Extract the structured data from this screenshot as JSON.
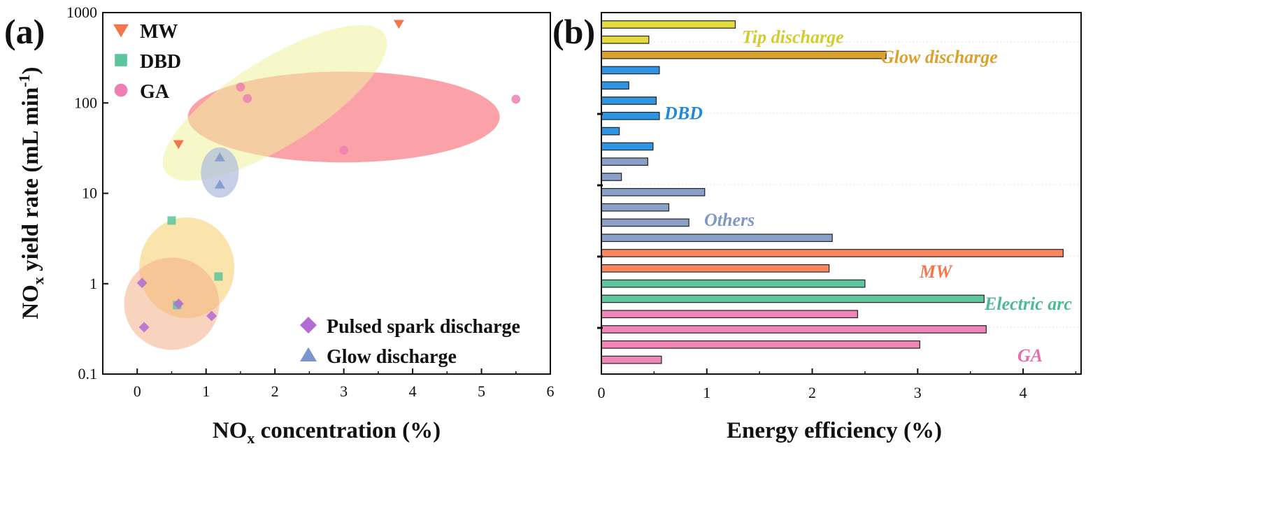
{
  "figure": {
    "panel_a_label": "(a)",
    "panel_b_label": "(b)"
  },
  "chart_data": [
    {
      "type": "scatter",
      "panel": "(a)",
      "title": "",
      "xlabel_main": "NO",
      "xlabel_sub": "x",
      "xlabel_rest": " concentration (%)",
      "ylabel_main": "NO",
      "ylabel_sub": "x",
      "ylabel_mid": " yield rate (mL min",
      "ylabel_sup": "-1",
      "ylabel_end": ")",
      "xlim": [
        -0.5,
        6
      ],
      "ylim": [
        0.1,
        1000
      ],
      "yscale": "log",
      "x_ticks": [
        0,
        1,
        2,
        3,
        4,
        5,
        6
      ],
      "x_tick_labels": [
        "0",
        "1",
        "2",
        "3",
        "4",
        "5",
        "6"
      ],
      "y_ticks": [
        0.1,
        1,
        10,
        100,
        1000
      ],
      "y_tick_labels": [
        "0.1",
        "1",
        "10",
        "100",
        "1000"
      ],
      "series": [
        {
          "name": "MW",
          "marker": "triangle-down",
          "color": "#F4764D",
          "points": [
            [
              0.6,
              35
            ],
            [
              3.8,
              750
            ]
          ]
        },
        {
          "name": "DBD",
          "marker": "square",
          "color": "#5CC59E",
          "points": [
            [
              0.5,
              5
            ],
            [
              1.18,
              1.2
            ],
            [
              0.58,
              0.58
            ]
          ]
        },
        {
          "name": "GA",
          "marker": "circle",
          "color": "#EE7FB3",
          "points": [
            [
              1.5,
              150
            ],
            [
              1.6,
              112
            ],
            [
              3.0,
              30
            ],
            [
              5.5,
              110
            ]
          ]
        },
        {
          "name": "Pulsed spark discharge",
          "marker": "diamond",
          "color": "#B36CD6",
          "points": [
            [
              0.07,
              1.02
            ],
            [
              0.1,
              0.33
            ],
            [
              0.6,
              0.6
            ],
            [
              1.08,
              0.44
            ]
          ]
        },
        {
          "name": "Glow discharge",
          "marker": "triangle-up",
          "color": "#7C95CC",
          "points": [
            [
              1.2,
              25
            ],
            [
              1.2,
              12.5
            ]
          ]
        }
      ],
      "legend_top": [
        "MW",
        "DBD",
        "GA"
      ],
      "legend_bottom": [
        "Pulsed spark discharge",
        "Glow discharge"
      ],
      "regions": [
        {
          "name": "MW region",
          "color": "#F6555F",
          "opacity": 0.55
        },
        {
          "name": "GA region",
          "color": "#EEF39F",
          "opacity": 0.55
        },
        {
          "name": "Glow region",
          "color": "#AEBBDA",
          "opacity": 0.7
        },
        {
          "name": "DBD region",
          "color": "#F7C75A",
          "opacity": 0.5
        },
        {
          "name": "Pulsed region",
          "color": "#F3AF86",
          "opacity": 0.55
        }
      ]
    },
    {
      "type": "bar",
      "orientation": "horizontal",
      "panel": "(b)",
      "xlabel": "Energy efficiency (%)",
      "ylabel": "",
      "xlim": [
        0,
        4.55
      ],
      "x_ticks": [
        0,
        1,
        2,
        3,
        4
      ],
      "x_tick_labels": [
        "0",
        "1",
        "2",
        "3",
        "4"
      ],
      "groups": [
        {
          "name": "Tip discharge",
          "color": "#E3DB3C",
          "label_color": "#D4CC2C",
          "values": [
            1.27,
            0.45
          ]
        },
        {
          "name": "Glow discharge",
          "color": "#DAA22C",
          "label_color": "#DAA22C",
          "values": [
            2.7
          ]
        },
        {
          "name": "DBD",
          "color": "#2E95E4",
          "label_color": "#1E88DA",
          "values": [
            0.55,
            0.26,
            0.52,
            0.55,
            0.17,
            0.49
          ]
        },
        {
          "name": "Others",
          "color": "#8AA0C8",
          "label_color": "#8197C4",
          "values": [
            0.44,
            0.19,
            0.98,
            0.64,
            0.83,
            2.19
          ]
        },
        {
          "name": "MW",
          "color": "#FB8660",
          "label_color": "#F4764D",
          "values": [
            4.38,
            2.16
          ]
        },
        {
          "name": "Electric arc",
          "color": "#5DC69E",
          "label_color": "#4DBB92",
          "values": [
            2.5,
            3.63
          ]
        },
        {
          "name": "GA",
          "color": "#EF86B7",
          "label_color": "#E86DA8",
          "values": [
            2.43,
            3.65,
            3.02,
            0.57
          ]
        }
      ]
    }
  ]
}
